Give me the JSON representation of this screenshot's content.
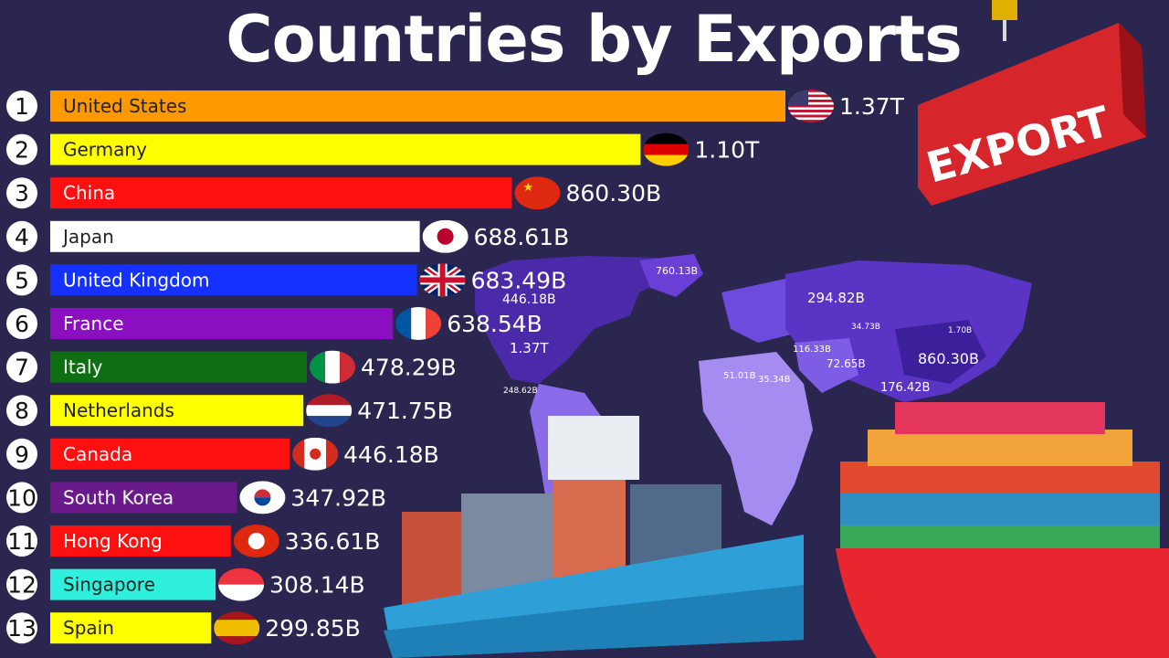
{
  "chart_data": {
    "type": "bar",
    "title": "Countries by Exports",
    "categories": [
      "United States",
      "Germany",
      "China",
      "Japan",
      "United Kingdom",
      "France",
      "Italy",
      "Netherlands",
      "Canada",
      "South Korea",
      "Hong Kong",
      "Singapore",
      "Spain"
    ],
    "ranks": [
      "1",
      "2",
      "3",
      "4",
      "5",
      "6",
      "7",
      "8",
      "9",
      "10",
      "11",
      "12",
      "13"
    ],
    "values": [
      1370,
      1100,
      860.3,
      688.61,
      683.49,
      638.54,
      478.29,
      471.75,
      446.18,
      347.92,
      336.61,
      308.14,
      299.85
    ],
    "value_labels": [
      "1.37T",
      "1.10T",
      "860.30B",
      "688.61B",
      "683.49B",
      "638.54B",
      "478.29B",
      "471.75B",
      "446.18B",
      "347.92B",
      "336.61B",
      "308.14B",
      "299.85B"
    ],
    "value_unit": "billions USD",
    "bar_colors": [
      "#ff9900",
      "#ffff00",
      "#ff1010",
      "#ffffff",
      "#1531ff",
      "#8a0fbf",
      "#0d6e12",
      "#ffff00",
      "#ff1010",
      "#6a1a8a",
      "#ff1010",
      "#2ef0dc",
      "#ffff00"
    ],
    "label_colors": [
      "#222222",
      "#222222",
      "#ffffff",
      "#222222",
      "#ffffff",
      "#ffffff",
      "#ffffff",
      "#222222",
      "#ffffff",
      "#ffffff",
      "#ffffff",
      "#222222",
      "#222222"
    ],
    "flags": [
      "us-flag",
      "germany-flag",
      "china-flag",
      "japan-flag",
      "uk-flag",
      "france-flag",
      "italy-flag",
      "netherlands-flag",
      "canada-flag",
      "south-korea-flag",
      "hong-kong-flag",
      "singapore-flag",
      "spain-flag"
    ]
  },
  "map_labels": [
    "760.13B",
    "446.18B",
    "294.82B",
    "1.37T",
    "860.30B",
    "176.42B",
    "72.65B",
    "51.01B",
    "35.34B",
    "248.62B",
    "34.73B",
    "116.33B",
    "1.70B"
  ],
  "graphics": {
    "export_sign": "EXPORT",
    "background_color": "#2b2650"
  }
}
